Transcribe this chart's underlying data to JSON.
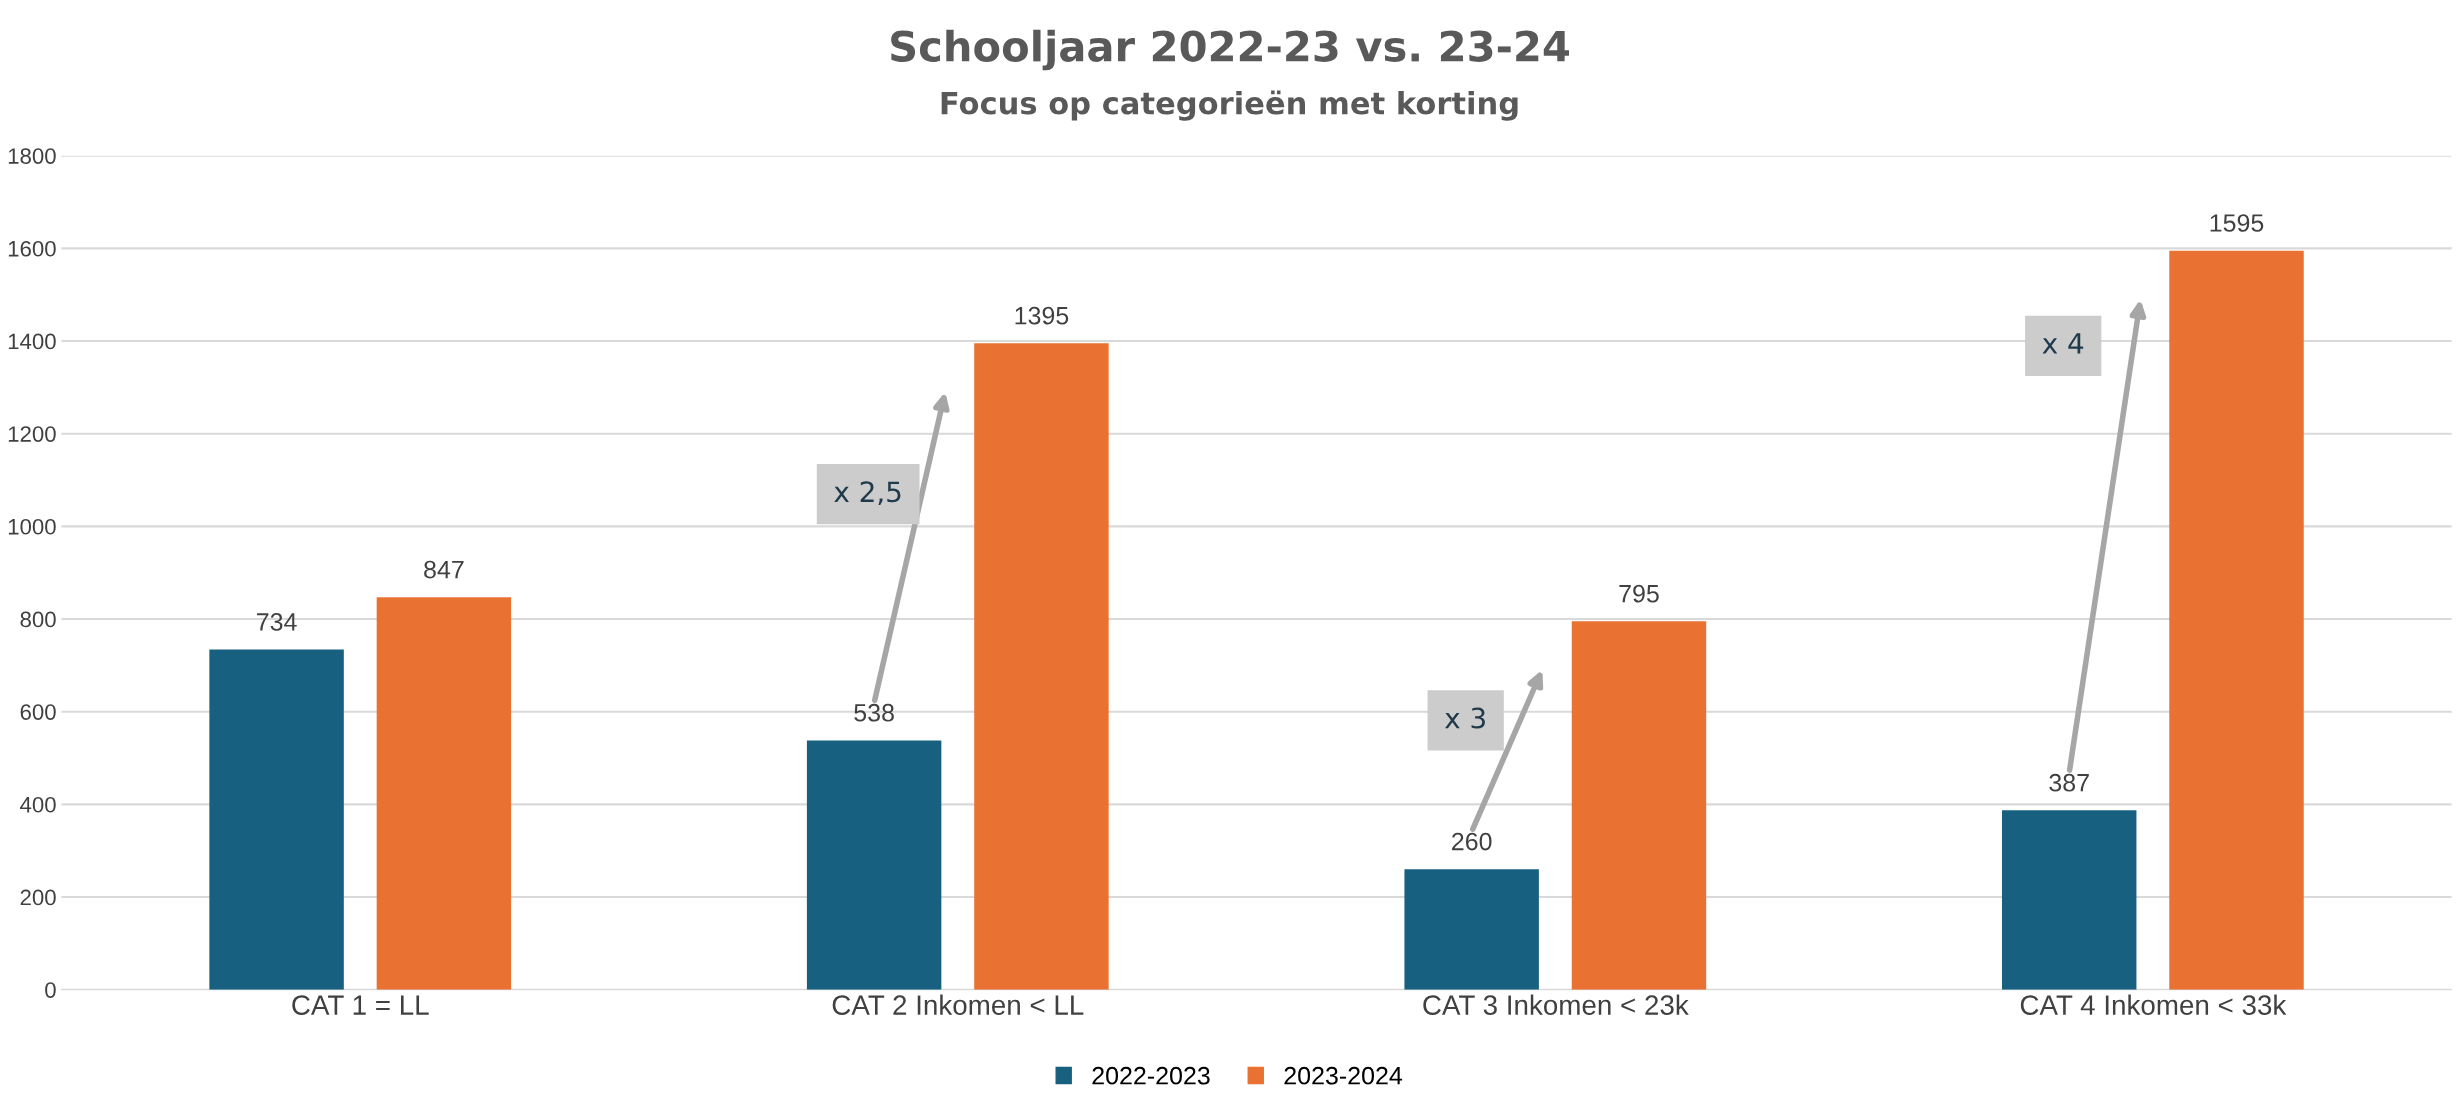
{
  "chart_data": {
    "type": "bar",
    "title": "Schooljaar 2022-23 vs. 23-24",
    "subtitle": "Focus op categorieën met korting",
    "categories": [
      "CAT 1 = LL",
      "CAT 2 Inkomen < LL",
      "CAT 3 Inkomen < 23k",
      "CAT 4 Inkomen < 33k"
    ],
    "series": [
      {
        "name": "2022-2023",
        "color": "#17607f",
        "values": [
          734,
          538,
          260,
          387
        ]
      },
      {
        "name": "2023-2024",
        "color": "#e97132",
        "values": [
          847,
          1395,
          795,
          1595
        ]
      }
    ],
    "ylim": [
      0,
      1800
    ],
    "yticks": [
      0,
      200,
      400,
      600,
      800,
      1000,
      1200,
      1400,
      1600,
      1800
    ],
    "grid": "y",
    "legend": "bottom",
    "data_labels": true,
    "annotations": [
      "x 2,5",
      "x 3",
      "x 4"
    ]
  }
}
